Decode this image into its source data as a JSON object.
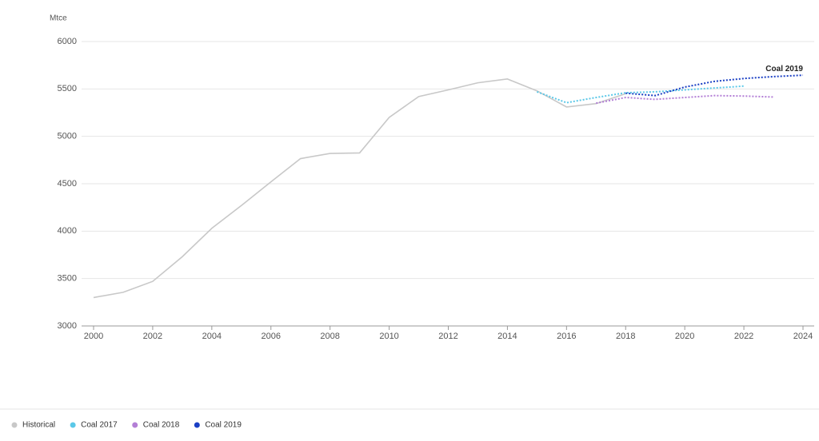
{
  "chart_data": {
    "type": "line",
    "y_label": "Mtce",
    "xlim": [
      2000,
      2024
    ],
    "xticks": [
      2000,
      2002,
      2004,
      2006,
      2008,
      2010,
      2012,
      2014,
      2016,
      2018,
      2020,
      2022,
      2024
    ],
    "ylim": [
      3000,
      6000
    ],
    "yticks": [
      3000,
      3500,
      4000,
      4500,
      5000,
      5500,
      6000
    ],
    "grid": true,
    "series": [
      {
        "name": "Historical",
        "color": "#c8c8c8",
        "style": "solid",
        "x": [
          2000,
          2001,
          2002,
          2003,
          2004,
          2005,
          2006,
          2007,
          2008,
          2009,
          2010,
          2011,
          2012,
          2013,
          2014,
          2015,
          2016,
          2017,
          2018
        ],
        "values": [
          3300,
          3355,
          3470,
          3730,
          4030,
          4270,
          4520,
          4765,
          4820,
          4825,
          5200,
          5420,
          5490,
          5565,
          5605,
          5480,
          5310,
          5345,
          5450
        ]
      },
      {
        "name": "Coal 2017",
        "color": "#5bc8e8",
        "style": "dotted",
        "x": [
          2015,
          2016,
          2017,
          2018,
          2019,
          2020,
          2021,
          2022
        ],
        "values": [
          5470,
          5355,
          5410,
          5460,
          5470,
          5490,
          5510,
          5530
        ]
      },
      {
        "name": "Coal 2018",
        "color": "#b37fd6",
        "style": "dotted",
        "x": [
          2017,
          2018,
          2019,
          2020,
          2021,
          2022,
          2023
        ],
        "values": [
          5350,
          5410,
          5390,
          5410,
          5430,
          5425,
          5415
        ]
      },
      {
        "name": "Coal 2019",
        "color": "#1a3fc4",
        "style": "dotted",
        "x": [
          2018,
          2019,
          2020,
          2021,
          2022,
          2023,
          2024
        ],
        "values": [
          5455,
          5430,
          5520,
          5580,
          5610,
          5630,
          5645
        ]
      }
    ]
  }
}
